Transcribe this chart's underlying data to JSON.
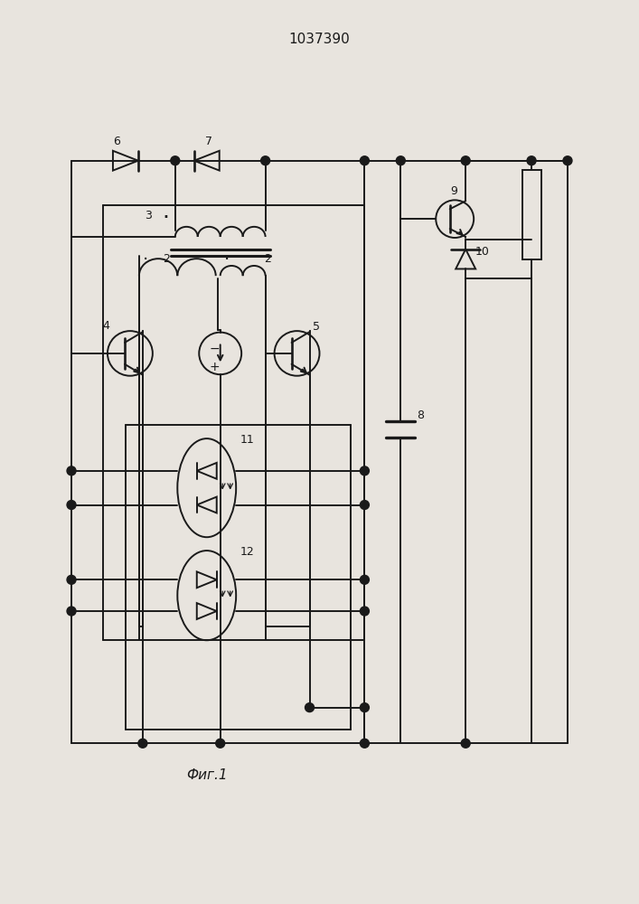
{
  "title": "1037390",
  "caption": "Фиг.1",
  "bg_color": "#e8e4de",
  "line_color": "#1a1a1a",
  "lw": 1.4,
  "fig_width": 7.07,
  "fig_height": 10.0
}
